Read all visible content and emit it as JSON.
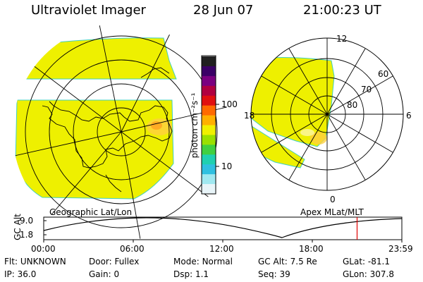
{
  "header": {
    "instrument": "Ultraviolet Imager",
    "date": "28 Jun 07",
    "time": "21:00:23 UT"
  },
  "colorbar": {
    "unit_label": "photon cm⁻²s⁻¹",
    "ticks": [
      "100",
      "10"
    ],
    "colors": [
      "#202020",
      "#3a0066",
      "#7a0080",
      "#b00040",
      "#e01010",
      "#ff6a00",
      "#ffb000",
      "#f0f000",
      "#9ae000",
      "#40d040",
      "#20d0b0",
      "#30c0e0",
      "#a0e8f0",
      "#e8f4f8"
    ]
  },
  "left_map": {
    "label": "Geographic Lat/Lon",
    "fill_color": "#eef000"
  },
  "right_map": {
    "label": "Apex MLat/MLT",
    "mlt_labels": {
      "top": "12",
      "left": "18",
      "right": "6",
      "bottom": "0"
    },
    "lat_labels": [
      "60",
      "70",
      "80"
    ],
    "fill_color": "#eef000"
  },
  "altitude_plot": {
    "y_label": "GC Alt",
    "y_ticks": [
      "9.0",
      "1.8"
    ],
    "x_ticks": [
      "00:00",
      "06:00",
      "12:00",
      "18:00",
      "23:59"
    ],
    "marker_color": "#e00000",
    "marker_time_hours": 21.0
  },
  "footer": {
    "row1": [
      {
        "label": "Flt:",
        "value": "UNKNOWN"
      },
      {
        "label": "Door:",
        "value": "Fullex"
      },
      {
        "label": "Mode:",
        "value": "Normal"
      },
      {
        "label": "GC Alt:",
        "value": "7.5 Re"
      },
      {
        "label": "GLat:",
        "value": "-81.1"
      }
    ],
    "row2": [
      {
        "label": "IP:",
        "value": "36.0"
      },
      {
        "label": "Gain:",
        "value": "0"
      },
      {
        "label": "Dsp:",
        "value": "1.1"
      },
      {
        "label": "Seq:",
        "value": "39"
      },
      {
        "label": "GLon:",
        "value": "307.8"
      }
    ]
  }
}
